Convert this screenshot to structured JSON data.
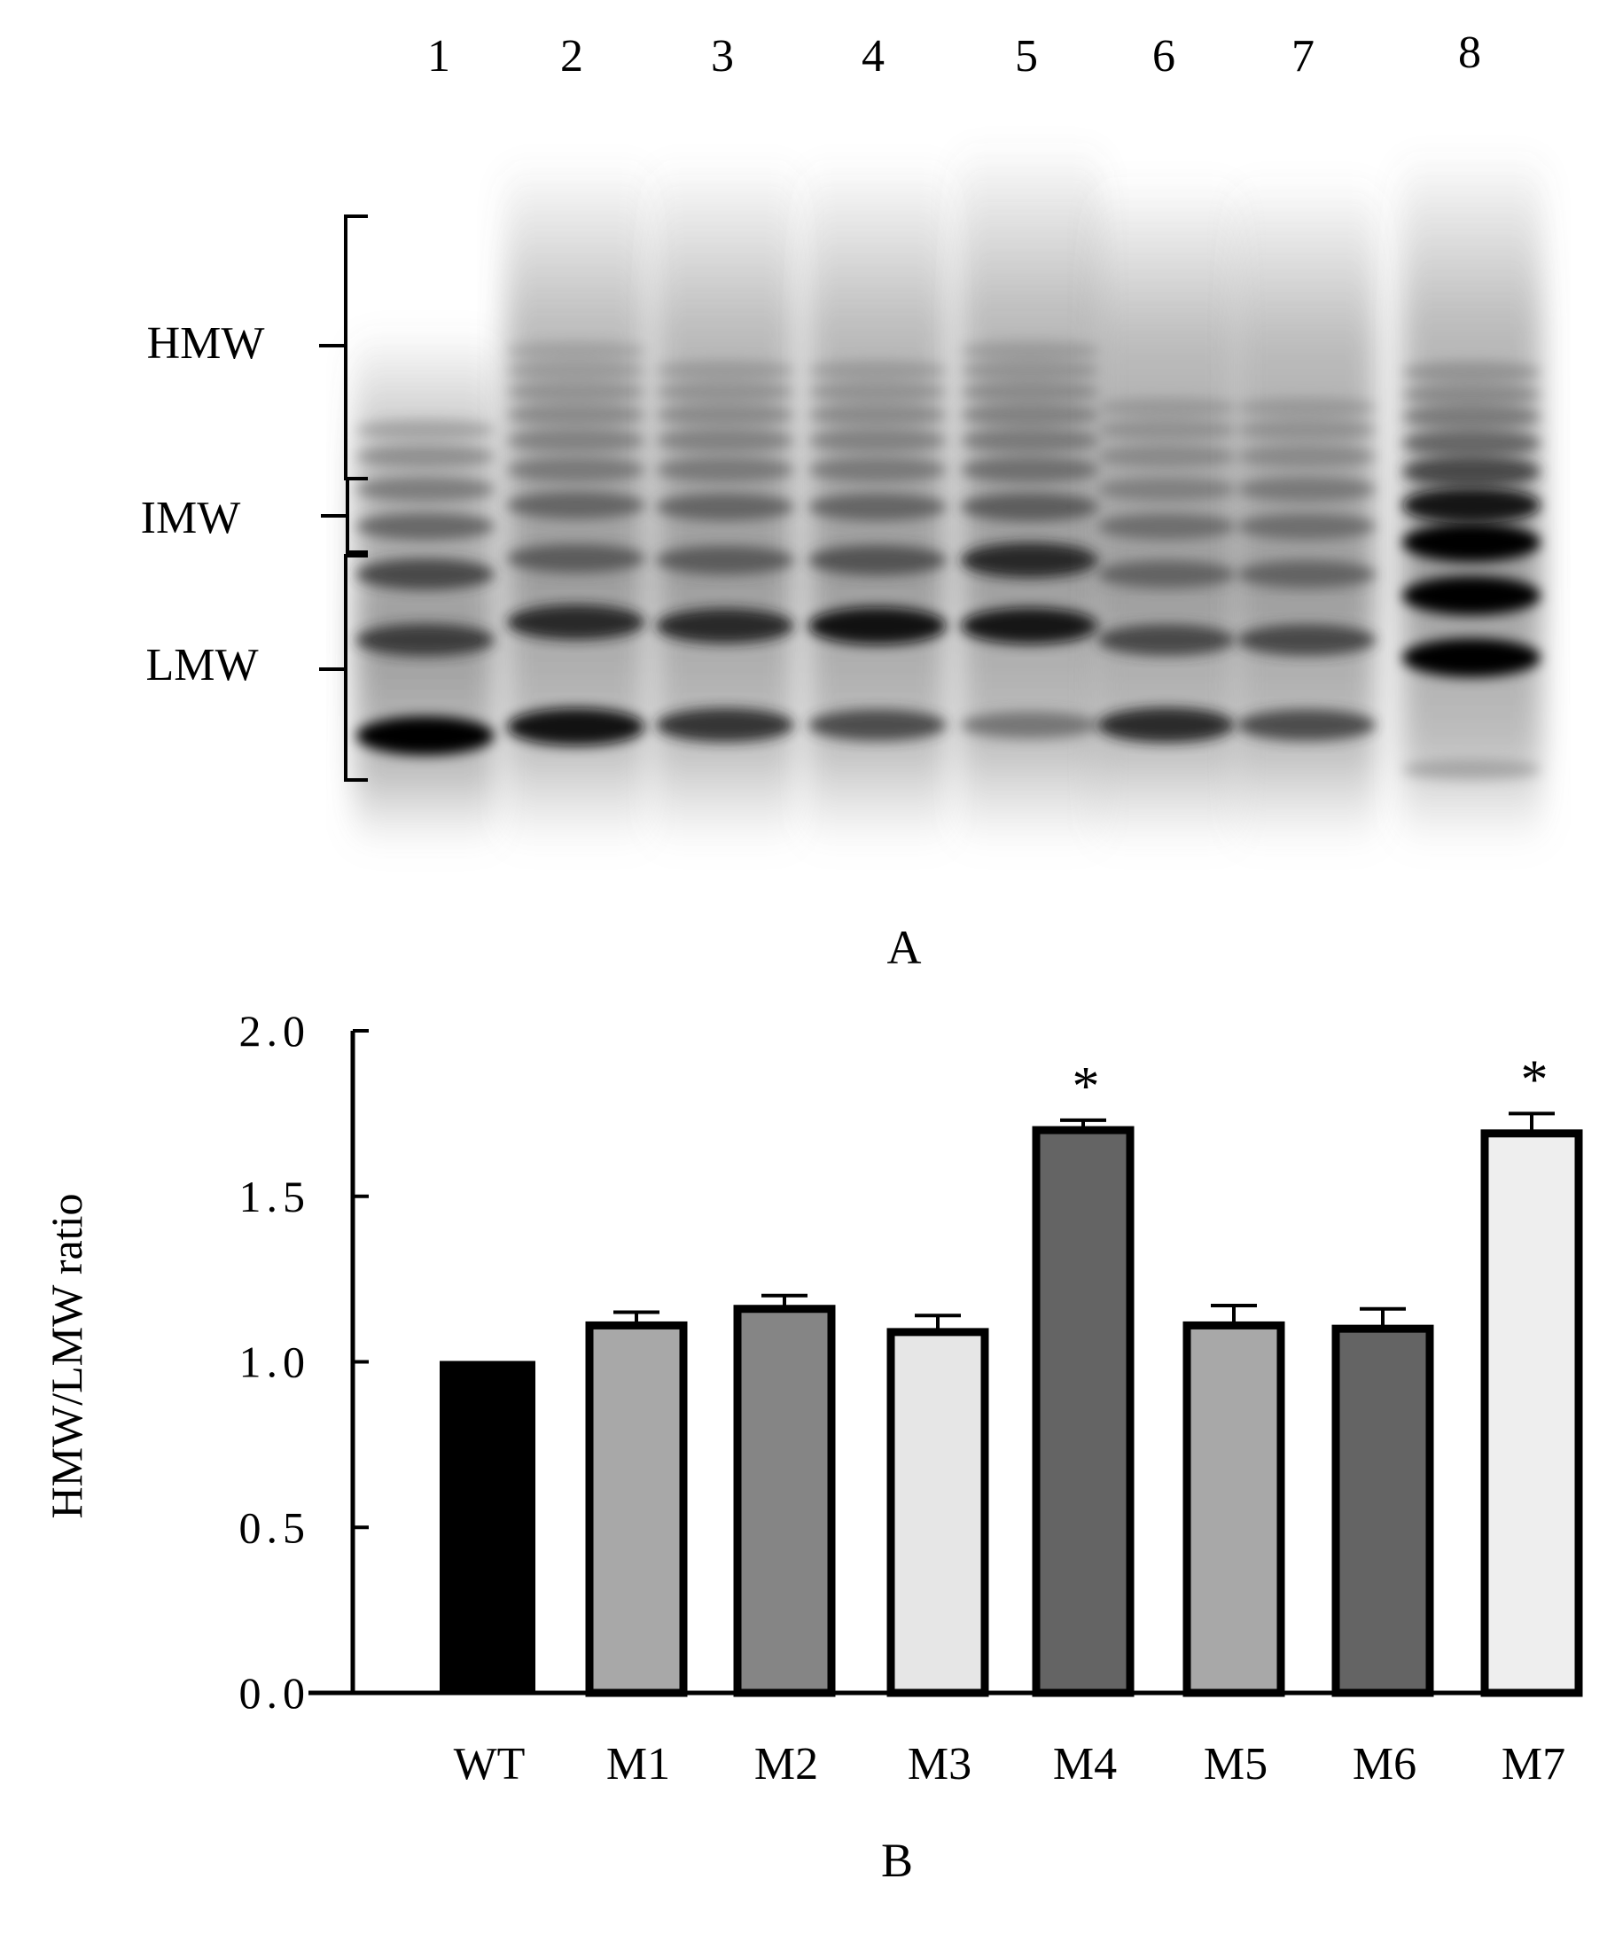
{
  "panel_a": {
    "label": "A",
    "lane_labels": [
      "1",
      "2",
      "3",
      "4",
      "5",
      "6",
      "7",
      "8"
    ],
    "bracket_labels": [
      "HMW",
      "IMW",
      "LMW"
    ]
  },
  "panel_b": {
    "label": "B"
  },
  "chart_data": {
    "type": "bar",
    "title": "",
    "xlabel": "",
    "ylabel": "HMW/LMW ratio",
    "ylim": [
      0,
      2.0
    ],
    "yticks": [
      0,
      0.5,
      1.0,
      1.5,
      2.0
    ],
    "ytick_labels": [
      "0.0",
      "0.5",
      "1.0",
      "1.5",
      "2.0"
    ],
    "categories": [
      "WT",
      "M1",
      "M2",
      "M3",
      "M4",
      "M5",
      "M6",
      "M7"
    ],
    "values": [
      1.0,
      1.11,
      1.16,
      1.09,
      1.7,
      1.11,
      1.1,
      1.69
    ],
    "errors": [
      0,
      0.04,
      0.04,
      0.05,
      0.03,
      0.06,
      0.06,
      0.06
    ],
    "bar_colors": [
      "#000000",
      "#a8a8a8",
      "#858585",
      "#e6e6e6",
      "#646464",
      "#a8a8a8",
      "#646464",
      "#eeeeee"
    ],
    "significance": [
      "",
      "",
      "",
      "",
      "*",
      "",
      "",
      "*"
    ],
    "grid": false,
    "legend": "none"
  }
}
